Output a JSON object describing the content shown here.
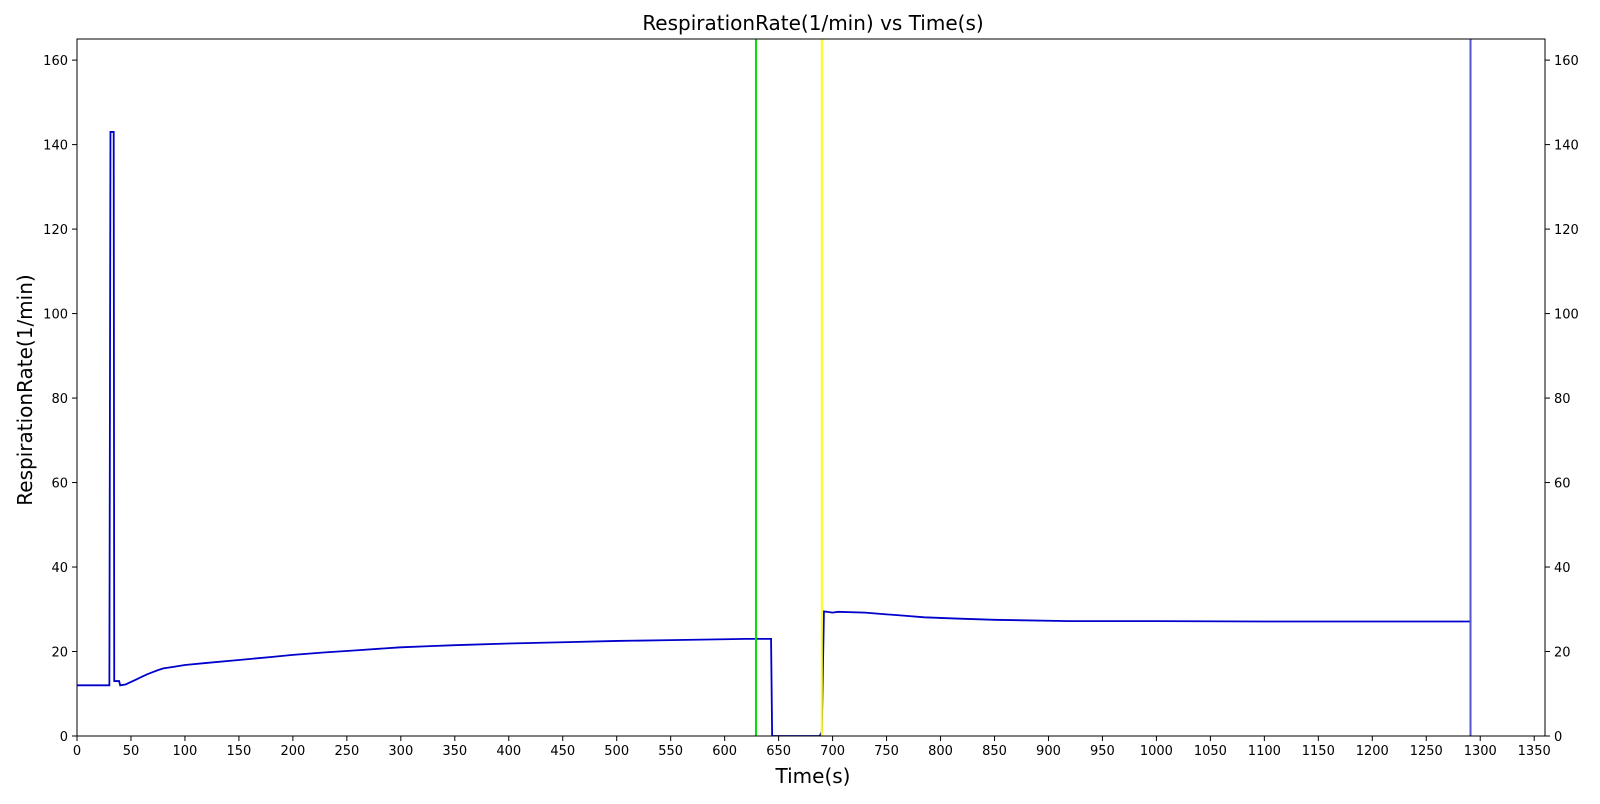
{
  "chart_data": {
    "type": "line",
    "title": "RespirationRate(1/min) vs Time(s)",
    "xlabel": "Time(s)",
    "ylabel": "RespirationRate(1/min)",
    "xlim": [
      0,
      1360
    ],
    "ylim": [
      0,
      165
    ],
    "x_ticks": [
      0,
      50,
      100,
      150,
      200,
      250,
      300,
      350,
      400,
      450,
      500,
      550,
      600,
      650,
      700,
      750,
      800,
      850,
      900,
      950,
      1000,
      1050,
      1100,
      1150,
      1200,
      1250,
      1300,
      1350
    ],
    "y_ticks": [
      0,
      20,
      40,
      60,
      80,
      100,
      120,
      140,
      160
    ],
    "right_axis_ticks": true,
    "grid": false,
    "legend": "none",
    "colors": {
      "series": "#0000cc",
      "marker_green": "#00dd00",
      "marker_yellow": "#ffff00",
      "marker_blue": "#5555cc"
    },
    "vertical_markers": [
      {
        "x": 629,
        "color": "#00dd00"
      },
      {
        "x": 690,
        "color": "#ffff00"
      },
      {
        "x": 1291,
        "color": "#5555cc"
      }
    ],
    "series": [
      {
        "step": true,
        "points": [
          [
            0,
            12
          ],
          [
            30,
            12
          ],
          [
            31,
            143
          ],
          [
            34,
            143
          ],
          [
            34.5,
            13
          ],
          [
            39,
            13
          ],
          [
            40,
            12
          ],
          [
            45,
            12.2
          ],
          [
            50,
            12.8
          ],
          [
            55,
            13.4
          ],
          [
            60,
            14
          ],
          [
            65,
            14.6
          ],
          [
            70,
            15.1
          ],
          [
            75,
            15.6
          ],
          [
            80,
            16
          ],
          [
            90,
            16.4
          ],
          [
            95,
            16.6
          ],
          [
            100,
            16.8
          ],
          [
            120,
            17.3
          ],
          [
            150,
            18
          ],
          [
            180,
            18.7
          ],
          [
            200,
            19.2
          ],
          [
            230,
            19.8
          ],
          [
            260,
            20.3
          ],
          [
            300,
            21
          ],
          [
            330,
            21.3
          ],
          [
            350,
            21.5
          ],
          [
            400,
            21.9
          ],
          [
            450,
            22.2
          ],
          [
            500,
            22.5
          ],
          [
            550,
            22.7
          ],
          [
            600,
            22.9
          ],
          [
            620,
            23
          ],
          [
            643,
            23
          ],
          [
            644,
            0
          ],
          [
            688,
            0
          ],
          [
            690,
            1
          ],
          [
            692,
            29.5
          ],
          [
            700,
            29.2
          ],
          [
            705,
            29.4
          ],
          [
            730,
            29.2
          ],
          [
            750,
            28.8
          ],
          [
            770,
            28.4
          ],
          [
            785,
            28.1
          ],
          [
            815,
            27.8
          ],
          [
            850,
            27.5
          ],
          [
            920,
            27.2
          ],
          [
            1000,
            27.2
          ],
          [
            1100,
            27.1
          ],
          [
            1291,
            27.1
          ]
        ]
      }
    ]
  }
}
